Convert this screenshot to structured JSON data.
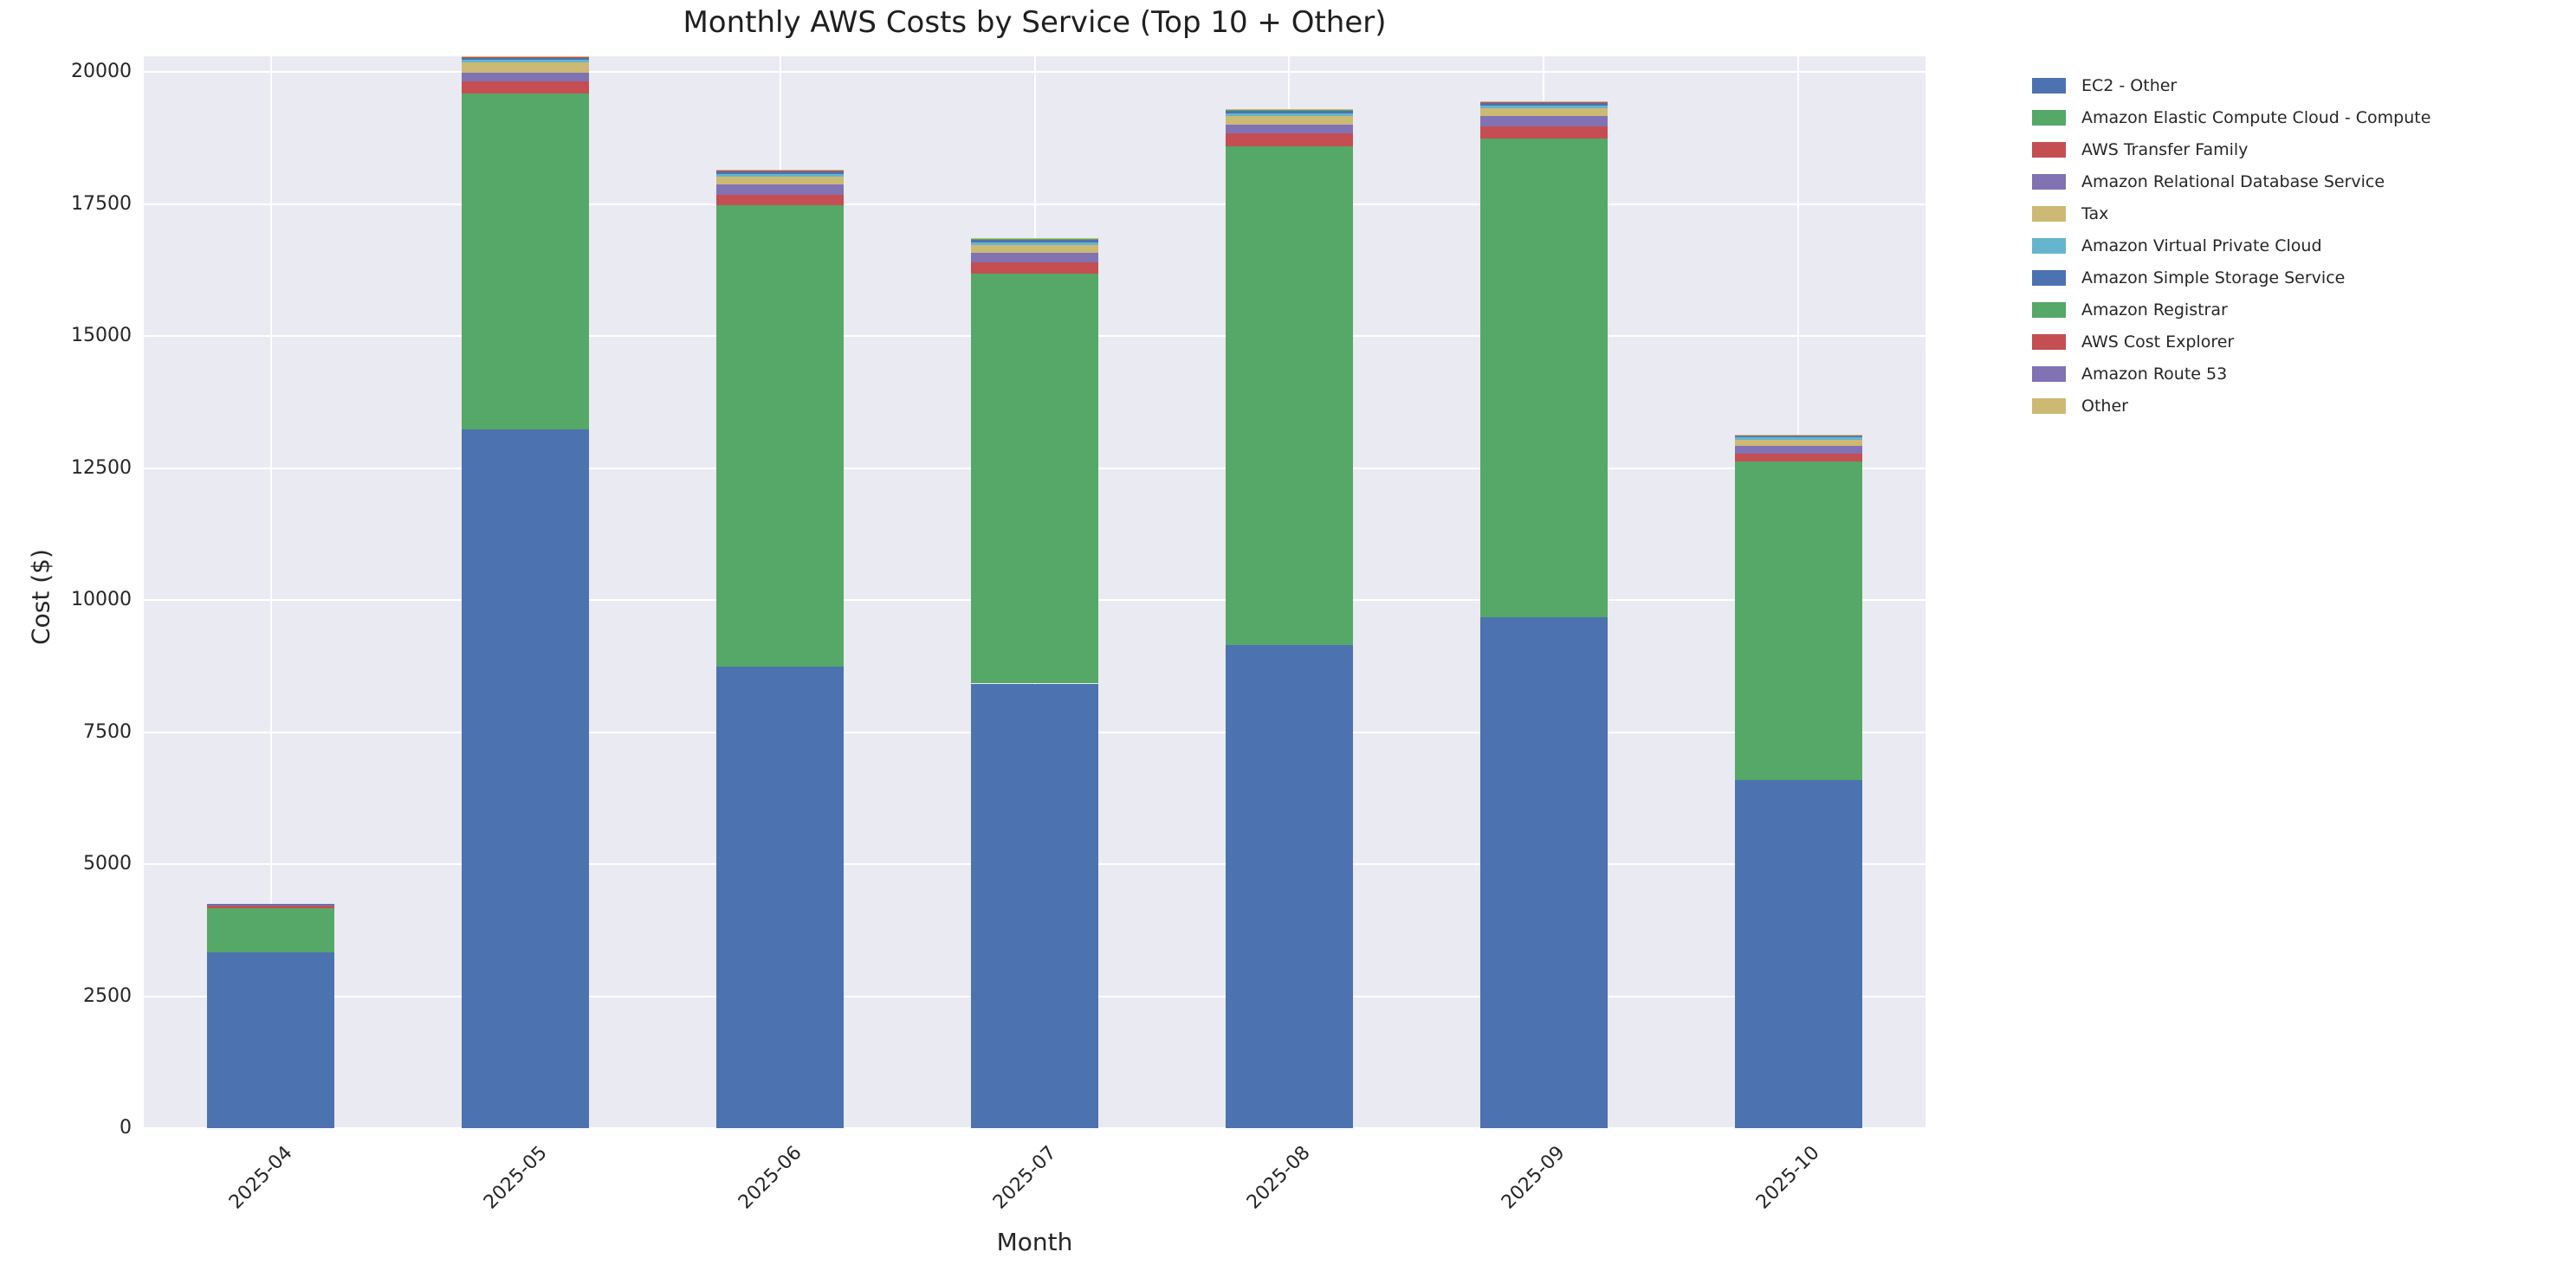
{
  "figure": {
    "title": "Monthly AWS Costs by Service (Top 10 + Other)",
    "xlabel": "Month",
    "ylabel": "Cost ($)"
  },
  "chart_data": {
    "type": "bar",
    "stacked": true,
    "title": "Monthly AWS Costs by Service (Top 10 + Other)",
    "xlabel": "Month",
    "ylabel": "Cost ($)",
    "categories": [
      "2025-04",
      "2025-05",
      "2025-06",
      "2025-07",
      "2025-08",
      "2025-09",
      "2025-10"
    ],
    "series": [
      {
        "name": "EC2 - Other",
        "color": "#4c72b0",
        "values": [
          3330,
          13230,
          8740,
          8420,
          9150,
          9670,
          6590
        ]
      },
      {
        "name": "Amazon Elastic Compute Cloud - Compute",
        "color": "#55a868",
        "values": [
          840,
          6370,
          8740,
          7770,
          9445,
          9075,
          6030
        ]
      },
      {
        "name": "AWS Transfer Family",
        "color": "#c44e52",
        "values": [
          60,
          220,
          200,
          205,
          240,
          230,
          155
        ]
      },
      {
        "name": "Amazon Relational Database Service",
        "color": "#8172b3",
        "values": [
          8,
          175,
          185,
          190,
          175,
          190,
          145
        ]
      },
      {
        "name": "Tax",
        "color": "#ccb974",
        "values": [
          5,
          185,
          155,
          135,
          165,
          150,
          120
        ]
      },
      {
        "name": "Amazon Virtual Private Cloud",
        "color": "#64b5cd",
        "values": [
          3,
          55,
          45,
          60,
          45,
          45,
          40
        ]
      },
      {
        "name": "Amazon Simple Storage Service",
        "color": "#4c72b0",
        "values": [
          2,
          35,
          65,
          60,
          65,
          65,
          30
        ]
      },
      {
        "name": "Amazon Registrar",
        "color": "#55a868",
        "values": [
          1,
          15,
          5,
          5,
          5,
          5,
          5
        ]
      },
      {
        "name": "AWS Cost Explorer",
        "color": "#c44e52",
        "values": [
          1,
          5,
          5,
          5,
          5,
          5,
          5
        ]
      },
      {
        "name": "Amazon Route 53",
        "color": "#8172b3",
        "values": [
          1,
          5,
          5,
          5,
          5,
          5,
          5
        ]
      },
      {
        "name": "Other",
        "color": "#ccb974",
        "values": [
          1,
          5,
          5,
          5,
          5,
          5,
          5
        ]
      }
    ],
    "totals": [
      4252,
      20300,
      18150,
      16860,
      19305,
      19445,
      13130
    ],
    "ylim": [
      0,
      20300
    ],
    "yticks": [
      0,
      2500,
      5000,
      7500,
      10000,
      12500,
      15000,
      17500,
      20000
    ],
    "grid": true,
    "plot_background": "#eaeaf2",
    "gridline_color": "#ffffff",
    "legend_position": "outside-right",
    "bar_width_fraction": 0.5,
    "xtick_rotation_deg": 45
  }
}
